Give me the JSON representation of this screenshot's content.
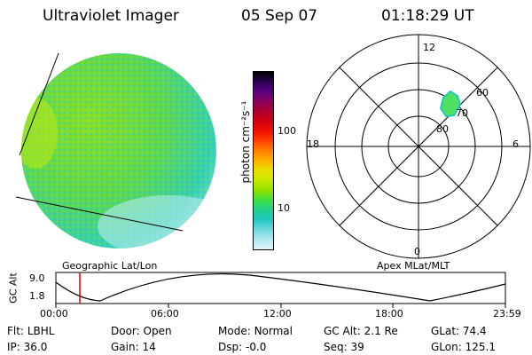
{
  "header": {
    "instrument": "Ultraviolet Imager",
    "date": "05 Sep 07",
    "time": "01:18:29 UT"
  },
  "colorbar": {
    "unit_label": "photon cm⁻²s⁻¹",
    "tick_labels": [
      "100",
      "10"
    ],
    "colors": [
      "#000000",
      "#2a0050",
      "#5a0080",
      "#8a0060",
      "#b00030",
      "#d00010",
      "#f01000",
      "#ff4000",
      "#ff8000",
      "#ffb000",
      "#e8e000",
      "#c8e800",
      "#90e000",
      "#40e040",
      "#20d090",
      "#20c8c0",
      "#70d8e0",
      "#b0e8f0",
      "#e0f4f8"
    ]
  },
  "earth_image": {
    "label": "Geographic Lat/Lon"
  },
  "polar_plot": {
    "label": "Apex MLat/MLT",
    "mlt_labels": {
      "top": "12",
      "bottom": "0",
      "left": "18",
      "right": "6"
    },
    "lat_labels": [
      "60",
      "70",
      "80"
    ]
  },
  "orbit_plot": {
    "ylabel": "GC Alt",
    "y_ticks": [
      "9.0",
      "1.8"
    ],
    "x_ticks": [
      "00:00",
      "06:00",
      "12:00",
      "18:00",
      "23:59"
    ],
    "current_time_marker": "01:18:29"
  },
  "info": {
    "flt_label": "Flt:",
    "flt_value": "LBHL",
    "ip_label": "IP:",
    "ip_value": "36.0",
    "door_label": "Door:",
    "door_value": "Open",
    "gain_label": "Gain:",
    "gain_value": "14",
    "mode_label": "Mode:",
    "mode_value": "Normal",
    "dsp_label": "Dsp:",
    "dsp_value": "-0.0",
    "gcalt_label": "GC Alt:",
    "gcalt_value": "2.1 Re",
    "seq_label": "Seq:",
    "seq_value": "39",
    "glat_label": "GLat:",
    "glat_value": "74.4",
    "glon_label": "GLon:",
    "glon_value": "125.1"
  }
}
